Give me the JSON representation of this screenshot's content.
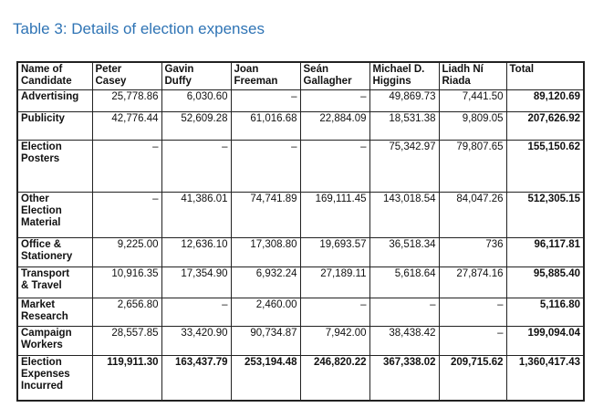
{
  "caption": "Table 3: Details of election expenses",
  "table": {
    "headers": [
      "Name of\nCandidate",
      "Peter\nCasey",
      "Gavin\nDuffy",
      "Joan\nFreeman",
      "Seán\nGallagher",
      "Michael D.\nHiggins",
      "Liadh Ní\nRiada",
      "Total"
    ],
    "rows": [
      {
        "label": "Advertising",
        "cells": [
          "25,778.86",
          "6,030.60",
          "–",
          "–",
          "49,869.73",
          "7,441.50"
        ],
        "total": "89,120.69"
      },
      {
        "label": "Publicity",
        "cells": [
          "42,776.44",
          "52,609.28",
          "61,016.68",
          "22,884.09",
          "18,531.38",
          "9,809.05"
        ],
        "total": "207,626.92"
      },
      {
        "label": "Election\nPosters",
        "cells": [
          "–",
          "–",
          "–",
          "–",
          "75,342.97",
          "79,807.65"
        ],
        "total": "155,150.62"
      },
      {
        "label": "Other\nElection\nMaterial",
        "cells": [
          "–",
          "41,386.01",
          "74,741.89",
          "169,111.45",
          "143,018.54",
          "84,047.26"
        ],
        "total": "512,305.15"
      },
      {
        "label": "Office &\nStationery",
        "cells": [
          "9,225.00",
          "12,636.10",
          "17,308.80",
          "19,693.57",
          "36,518.34",
          "736"
        ],
        "total": "96,117.81"
      },
      {
        "label": "Transport\n& Travel",
        "cells": [
          "10,916.35",
          "17,354.90",
          "6,932.24",
          "27,189.11",
          "5,618.64",
          "27,874.16"
        ],
        "total": "95,885.40"
      },
      {
        "label": "Market\nResearch",
        "cells": [
          "2,656.80",
          "–",
          "2,460.00",
          "–",
          "–",
          "–"
        ],
        "total": "5,116.80"
      },
      {
        "label": "Campaign\nWorkers",
        "cells": [
          "28,557.85",
          "33,420.90",
          "90,734.87",
          "7,942.00",
          "38,438.42",
          "–"
        ],
        "total": "199,094.04"
      },
      {
        "label": "Election\nExpenses\nIncurred",
        "cells": [
          "119,911.30",
          "163,437.79",
          "253,194.48",
          "246,820.22",
          "367,338.02",
          "209,715.62"
        ],
        "total": "1,360,417.43"
      }
    ]
  }
}
